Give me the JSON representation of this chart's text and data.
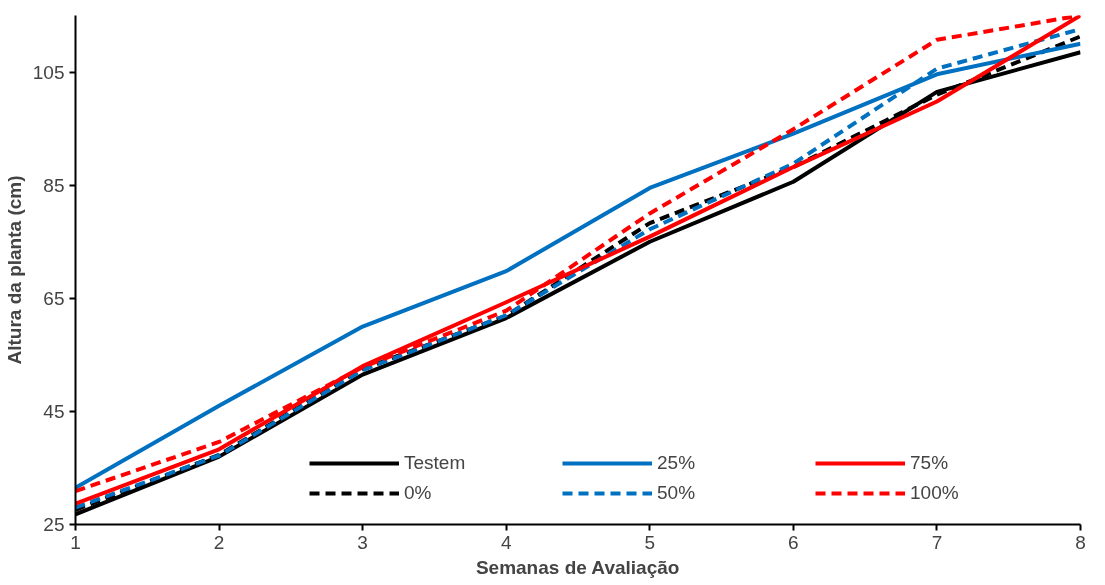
{
  "chart_data": {
    "type": "line",
    "xlabel": "Semanas de Avaliação",
    "ylabel": "Altura da planta (cm)",
    "x": [
      1,
      2,
      3,
      4,
      5,
      6,
      7,
      8
    ],
    "xlim": [
      1,
      8
    ],
    "xticks": [
      1,
      2,
      3,
      4,
      5,
      6,
      7,
      8
    ],
    "ylim": [
      25,
      115
    ],
    "yticks": [
      25,
      45,
      65,
      85,
      105
    ],
    "grid": false,
    "legend": "bottom right",
    "series": [
      {
        "name": "Testem",
        "color": "#000000",
        "line_style": "solid",
        "values": [
          26.8,
          37,
          51.5,
          61.5,
          75,
          85.6,
          101.5,
          108.5
        ]
      },
      {
        "name": "0%",
        "color": "#000000",
        "line_style": "dashed",
        "values": [
          27.6,
          37.3,
          52.5,
          61.9,
          78.3,
          88.2,
          101,
          111.3
        ]
      },
      {
        "name": "25%",
        "color": "#0070c0",
        "line_style": "solid",
        "values": [
          31.5,
          46,
          60,
          69.8,
          84.5,
          94.1,
          104.6,
          110
        ]
      },
      {
        "name": "50%",
        "color": "#0070c0",
        "line_style": "dashed",
        "values": [
          28,
          37.2,
          52.3,
          62,
          77.2,
          88.8,
          105.6,
          112.6
        ]
      },
      {
        "name": "75%",
        "color": "#ff0000",
        "line_style": "solid",
        "values": [
          28.7,
          38.3,
          53,
          64.3,
          75.9,
          88.2,
          99.8,
          115
        ]
      },
      {
        "name": "100%",
        "color": "#ff0000",
        "line_style": "dashed",
        "values": [
          30.9,
          39.6,
          52.8,
          62.8,
          80,
          94.9,
          110.7,
          115
        ]
      }
    ]
  }
}
